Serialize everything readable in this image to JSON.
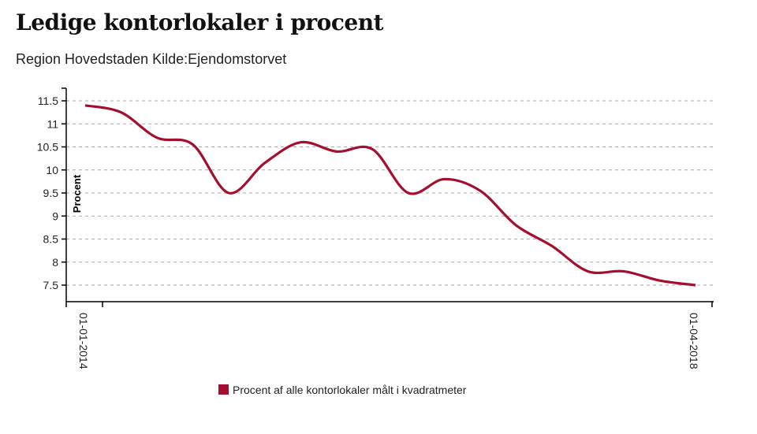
{
  "chart_data": {
    "type": "line",
    "title": "Ledige kontorlokaler i procent",
    "subtitle": "Region Hovedstaden Kilde:Ejendomstorvet",
    "xlabel": "",
    "ylabel": "Procent",
    "x_tick_labels": [
      "01-01-2014",
      "01-04-2018"
    ],
    "y_ticks": [
      7.5,
      8,
      8.5,
      9,
      9.5,
      10,
      10.5,
      11,
      11.5
    ],
    "y_tick_labels": [
      "7.5",
      "8",
      "8.5",
      "9",
      "9.5",
      "10",
      "10.5",
      "11",
      "11.5"
    ],
    "ylim": [
      7.16,
      11.8
    ],
    "grid": "horizontal dashed",
    "legend_position": "bottom-center",
    "x": [
      "2014Q1",
      "2014Q2",
      "2014Q3",
      "2014Q4",
      "2015Q1",
      "2015Q2",
      "2015Q3",
      "2015Q4",
      "2016Q1",
      "2016Q2",
      "2016Q3",
      "2016Q4",
      "2017Q1",
      "2017Q2",
      "2017Q3",
      "2017Q4",
      "2018Q1",
      "2018Q2"
    ],
    "series": [
      {
        "name": "Procent af alle kontorlokaler målt i kvadratmeter",
        "color": "#a50f2d",
        "values": [
          11.4,
          11.25,
          10.7,
          10.55,
          9.5,
          10.15,
          10.6,
          10.4,
          10.45,
          9.5,
          9.8,
          9.55,
          8.8,
          8.35,
          7.8,
          7.8,
          7.6,
          7.5
        ]
      }
    ]
  }
}
